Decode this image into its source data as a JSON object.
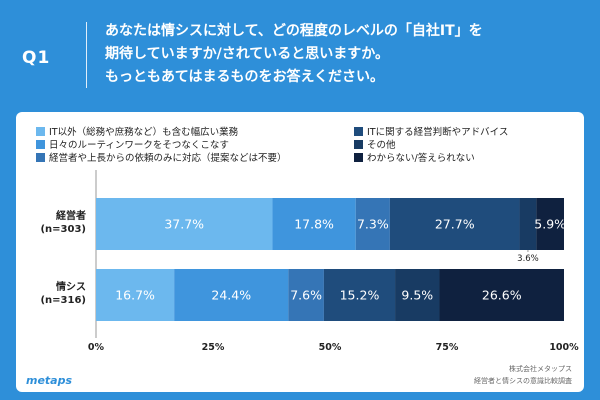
{
  "header": {
    "q_label": "Q1",
    "question_lines": [
      "あなたは情シスに対して、どの程度のレベルの「自社IT」を",
      "期待していますか/されていると思いますか。",
      "もっともあてはまるものをお答えください。"
    ]
  },
  "chart_data": {
    "type": "bar",
    "orientation": "horizontal",
    "stacked": true,
    "categories": [
      "経営者\n(n=303)",
      "情シス\n(n=316)"
    ],
    "series": [
      {
        "name": "IT以外（総務や庶務など）も含む幅広い業務",
        "color": "#6cb8ee",
        "values": [
          37.7,
          16.7
        ]
      },
      {
        "name": "日々のルーティンワークをそつなくこなす",
        "color": "#3f95dd",
        "values": [
          17.8,
          24.4
        ]
      },
      {
        "name": "経営者や上長からの依頼のみに対応（提案などは不要）",
        "color": "#3575b6",
        "values": [
          7.3,
          7.6
        ]
      },
      {
        "name": "ITに関する経営判断やアドバイス",
        "color": "#1f4c7c",
        "values": [
          27.7,
          15.2
        ]
      },
      {
        "name": "その他",
        "color": "#183b63",
        "values": [
          3.6,
          9.5
        ]
      },
      {
        "name": "わからない/答えられない",
        "color": "#0f213f",
        "values": [
          5.9,
          26.6
        ]
      }
    ],
    "data_labels": [
      [
        "37.7%",
        "17.8%",
        "7.3%",
        "27.7%",
        "3.6%",
        "5.9%"
      ],
      [
        "16.7%",
        "24.4%",
        "7.6%",
        "15.2%",
        "9.5%",
        "26.6%"
      ]
    ],
    "xlim": [
      0,
      100
    ],
    "xticks": [
      "0%",
      "25%",
      "50%",
      "75%",
      "100%"
    ],
    "xtick_values": [
      0,
      25,
      50,
      75,
      100
    ],
    "legend_position": "top"
  },
  "legend": {
    "order": [
      0,
      3,
      1,
      4,
      2,
      5
    ]
  },
  "footer": {
    "logo": "metaps",
    "line1": "株式会社メタップス",
    "line2": "経営者と情シスの意識比較調査"
  }
}
